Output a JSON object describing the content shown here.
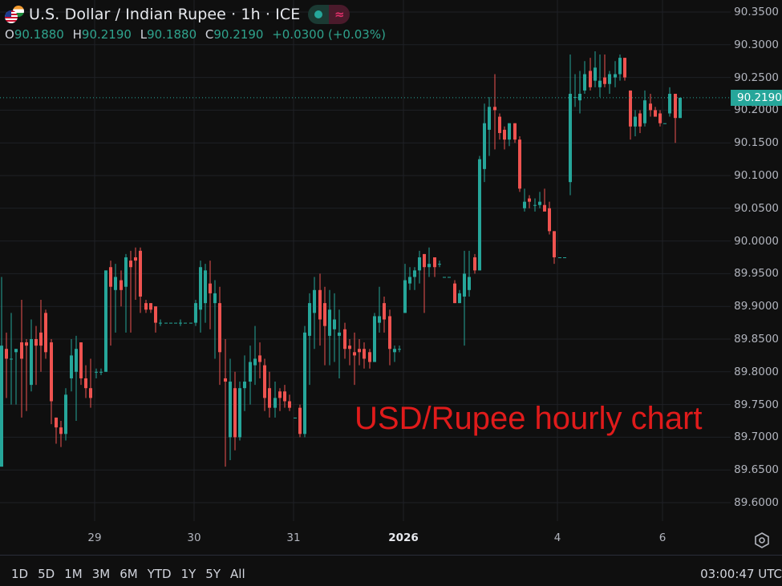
{
  "header": {
    "title": "U.S. Dollar / Indian Rupee · 1h · ICE",
    "symbol_icons": [
      "us-flag-icon",
      "india-flag-icon"
    ],
    "toggle": {
      "left_icon": "dot-icon",
      "right_icon": "approx-wave-icon",
      "right_glyph": "≈"
    },
    "ohlc": {
      "o_label": "O",
      "o_value": "90.1880",
      "h_label": "H",
      "h_value": "90.2190",
      "l_label": "L",
      "l_value": "90.1880",
      "c_label": "C",
      "c_value": "90.2190",
      "change": "+0.0300 (+0.03%)"
    }
  },
  "colors": {
    "background": "#0f0f0f",
    "grid": "#1f2126",
    "up": "#26a69a",
    "down": "#ef5350",
    "last_price_bg": "#26a69a",
    "annotation": "#e01b1b"
  },
  "price_axis": {
    "labels": [
      "90.3500",
      "90.3000",
      "90.2500",
      "90.2000",
      "90.1500",
      "90.1000",
      "90.0500",
      "90.0000",
      "89.9500",
      "89.9000",
      "89.8500",
      "89.8000",
      "89.7500",
      "89.7000",
      "89.6500",
      "89.6000"
    ],
    "last_price": "90.2190"
  },
  "time_axis": {
    "labels": [
      {
        "text": "29",
        "x": 118,
        "year": false
      },
      {
        "text": "30",
        "x": 242,
        "year": false
      },
      {
        "text": "31",
        "x": 366,
        "year": false
      },
      {
        "text": "2026",
        "x": 503,
        "year": true
      },
      {
        "text": "4",
        "x": 695,
        "year": false
      },
      {
        "text": "6",
        "x": 826,
        "year": false
      }
    ]
  },
  "annotation": {
    "text": "USD/Rupee hourly chart"
  },
  "bottom_bar": {
    "ranges": [
      "1D",
      "5D",
      "1M",
      "3M",
      "6M",
      "YTD",
      "1Y",
      "5Y",
      "All"
    ],
    "clock": "03:00:47 UTC"
  },
  "chart_data": {
    "type": "candlestick",
    "title": "U.S. Dollar / Indian Rupee · 1h · ICE",
    "xlabel": "",
    "ylabel": "",
    "x_tick_labels": [
      "29",
      "30",
      "31",
      "2026",
      "4",
      "6"
    ],
    "y_tick_labels": [
      "90.3500",
      "90.3000",
      "90.2500",
      "90.2000",
      "90.1500",
      "90.1000",
      "90.0500",
      "90.0000",
      "89.9500",
      "89.9000",
      "89.8500",
      "89.8000",
      "89.7500",
      "89.7000",
      "89.6500",
      "89.6000"
    ],
    "ylim": [
      89.58,
      90.37
    ],
    "grid": true,
    "last_price": 90.219,
    "annotation": "USD/Rupee hourly chart",
    "candles": [
      {
        "x": 0,
        "o": 89.655,
        "h": 89.945,
        "l": 89.655,
        "c": 89.84
      },
      {
        "x": 6,
        "o": 89.835,
        "h": 89.86,
        "l": 89.76,
        "c": 89.82
      },
      {
        "x": 12,
        "o": 89.82,
        "h": 89.89,
        "l": 89.75,
        "c": 89.82
      },
      {
        "x": 18,
        "o": 89.83,
        "h": 89.835,
        "l": 89.75,
        "c": 89.835
      },
      {
        "x": 25,
        "o": 89.845,
        "h": 89.91,
        "l": 89.73,
        "c": 89.82
      },
      {
        "x": 31,
        "o": 89.845,
        "h": 89.85,
        "l": 89.74,
        "c": 89.84
      },
      {
        "x": 37,
        "o": 89.78,
        "h": 89.88,
        "l": 89.77,
        "c": 89.85
      },
      {
        "x": 43,
        "o": 89.85,
        "h": 89.87,
        "l": 89.78,
        "c": 89.84
      },
      {
        "x": 49,
        "o": 89.86,
        "h": 89.91,
        "l": 89.8,
        "c": 89.84
      },
      {
        "x": 55,
        "o": 89.89,
        "h": 89.895,
        "l": 89.82,
        "c": 89.83
      },
      {
        "x": 62,
        "o": 89.845,
        "h": 89.85,
        "l": 89.72,
        "c": 89.755
      },
      {
        "x": 68,
        "o": 89.73,
        "h": 89.73,
        "l": 89.69,
        "c": 89.715
      },
      {
        "x": 74,
        "o": 89.715,
        "h": 89.725,
        "l": 89.685,
        "c": 89.705
      },
      {
        "x": 80,
        "o": 89.705,
        "h": 89.775,
        "l": 89.695,
        "c": 89.765
      },
      {
        "x": 87,
        "o": 89.79,
        "h": 89.85,
        "l": 89.77,
        "c": 89.825
      },
      {
        "x": 93,
        "o": 89.8,
        "h": 89.855,
        "l": 89.725,
        "c": 89.835
      },
      {
        "x": 99,
        "o": 89.845,
        "h": 89.845,
        "l": 89.78,
        "c": 89.79
      },
      {
        "x": 105,
        "o": 89.79,
        "h": 89.81,
        "l": 89.76,
        "c": 89.775
      },
      {
        "x": 111,
        "o": 89.775,
        "h": 89.82,
        "l": 89.745,
        "c": 89.76
      },
      {
        "x": 118,
        "o": 89.8,
        "h": 89.805,
        "l": 89.79,
        "c": 89.8
      },
      {
        "x": 124,
        "o": 89.8,
        "h": 89.805,
        "l": 89.795,
        "c": 89.8
      },
      {
        "x": 130,
        "o": 89.8,
        "h": 89.955,
        "l": 89.8,
        "c": 89.955
      },
      {
        "x": 136,
        "o": 89.96,
        "h": 89.97,
        "l": 89.84,
        "c": 89.93
      },
      {
        "x": 142,
        "o": 89.925,
        "h": 89.965,
        "l": 89.86,
        "c": 89.945
      },
      {
        "x": 149,
        "o": 89.94,
        "h": 89.955,
        "l": 89.9,
        "c": 89.925
      },
      {
        "x": 155,
        "o": 89.93,
        "h": 89.98,
        "l": 89.86,
        "c": 89.975
      },
      {
        "x": 161,
        "o": 89.97,
        "h": 89.985,
        "l": 89.86,
        "c": 89.96
      },
      {
        "x": 167,
        "o": 89.975,
        "h": 89.99,
        "l": 89.91,
        "c": 89.97
      },
      {
        "x": 173,
        "o": 89.985,
        "h": 89.99,
        "l": 89.89,
        "c": 89.915
      },
      {
        "x": 180,
        "o": 89.905,
        "h": 89.91,
        "l": 89.89,
        "c": 89.895
      },
      {
        "x": 186,
        "o": 89.905,
        "h": 89.905,
        "l": 89.89,
        "c": 89.895
      },
      {
        "x": 192,
        "o": 89.9,
        "h": 89.9,
        "l": 89.86,
        "c": 89.875
      },
      {
        "x": 198,
        "o": 89.875,
        "h": 89.88,
        "l": 89.87,
        "c": 89.875
      },
      {
        "x": 205,
        "o": 89.875,
        "h": 89.875,
        "l": 89.875,
        "c": 89.875
      },
      {
        "x": 211,
        "o": 89.875,
        "h": 89.875,
        "l": 89.875,
        "c": 89.875
      },
      {
        "x": 217,
        "o": 89.875,
        "h": 89.875,
        "l": 89.875,
        "c": 89.875
      },
      {
        "x": 223,
        "o": 89.875,
        "h": 89.88,
        "l": 89.87,
        "c": 89.875
      },
      {
        "x": 229,
        "o": 89.875,
        "h": 89.875,
        "l": 89.875,
        "c": 89.875
      },
      {
        "x": 236,
        "o": 89.875,
        "h": 89.875,
        "l": 89.875,
        "c": 89.875
      },
      {
        "x": 242,
        "o": 89.875,
        "h": 89.91,
        "l": 89.87,
        "c": 89.905
      },
      {
        "x": 248,
        "o": 89.895,
        "h": 89.97,
        "l": 89.86,
        "c": 89.96
      },
      {
        "x": 254,
        "o": 89.905,
        "h": 89.965,
        "l": 89.875,
        "c": 89.955
      },
      {
        "x": 260,
        "o": 89.935,
        "h": 89.97,
        "l": 89.865,
        "c": 89.92
      },
      {
        "x": 266,
        "o": 89.905,
        "h": 89.94,
        "l": 89.82,
        "c": 89.92
      },
      {
        "x": 272,
        "o": 89.905,
        "h": 89.93,
        "l": 89.78,
        "c": 89.83
      },
      {
        "x": 279,
        "o": 89.79,
        "h": 89.85,
        "l": 89.655,
        "c": 89.785
      },
      {
        "x": 285,
        "o": 89.7,
        "h": 89.82,
        "l": 89.665,
        "c": 89.785
      },
      {
        "x": 291,
        "o": 89.775,
        "h": 89.8,
        "l": 89.68,
        "c": 89.7
      },
      {
        "x": 297,
        "o": 89.7,
        "h": 89.785,
        "l": 89.695,
        "c": 89.775
      },
      {
        "x": 303,
        "o": 89.775,
        "h": 89.825,
        "l": 89.74,
        "c": 89.785
      },
      {
        "x": 310,
        "o": 89.785,
        "h": 89.84,
        "l": 89.75,
        "c": 89.815
      },
      {
        "x": 316,
        "o": 89.81,
        "h": 89.87,
        "l": 89.78,
        "c": 89.82
      },
      {
        "x": 322,
        "o": 89.825,
        "h": 89.845,
        "l": 89.79,
        "c": 89.815
      },
      {
        "x": 328,
        "o": 89.81,
        "h": 89.82,
        "l": 89.74,
        "c": 89.76
      },
      {
        "x": 334,
        "o": 89.775,
        "h": 89.8,
        "l": 89.73,
        "c": 89.745
      },
      {
        "x": 341,
        "o": 89.745,
        "h": 89.785,
        "l": 89.73,
        "c": 89.76
      },
      {
        "x": 347,
        "o": 89.77,
        "h": 89.775,
        "l": 89.74,
        "c": 89.76
      },
      {
        "x": 353,
        "o": 89.77,
        "h": 89.78,
        "l": 89.745,
        "c": 89.755
      },
      {
        "x": 359,
        "o": 89.755,
        "h": 89.765,
        "l": 89.74,
        "c": 89.745
      },
      {
        "x": 366,
        "o": 89.73,
        "h": 89.73,
        "l": 89.73,
        "c": 89.73
      },
      {
        "x": 372,
        "o": 89.745,
        "h": 89.75,
        "l": 89.7,
        "c": 89.705
      },
      {
        "x": 378,
        "o": 89.705,
        "h": 89.87,
        "l": 89.7,
        "c": 89.86
      },
      {
        "x": 384,
        "o": 89.855,
        "h": 89.92,
        "l": 89.78,
        "c": 89.905
      },
      {
        "x": 390,
        "o": 89.89,
        "h": 89.945,
        "l": 89.835,
        "c": 89.925
      },
      {
        "x": 397,
        "o": 89.925,
        "h": 89.95,
        "l": 89.84,
        "c": 89.88
      },
      {
        "x": 403,
        "o": 89.905,
        "h": 89.93,
        "l": 89.81,
        "c": 89.87
      },
      {
        "x": 409,
        "o": 89.855,
        "h": 89.925,
        "l": 89.81,
        "c": 89.895
      },
      {
        "x": 415,
        "o": 89.865,
        "h": 89.92,
        "l": 89.815,
        "c": 89.88
      },
      {
        "x": 421,
        "o": 89.855,
        "h": 89.895,
        "l": 89.79,
        "c": 89.86
      },
      {
        "x": 428,
        "o": 89.865,
        "h": 89.875,
        "l": 89.82,
        "c": 89.835
      },
      {
        "x": 434,
        "o": 89.84,
        "h": 89.85,
        "l": 89.81,
        "c": 89.835
      },
      {
        "x": 440,
        "o": 89.83,
        "h": 89.86,
        "l": 89.78,
        "c": 89.825
      },
      {
        "x": 446,
        "o": 89.835,
        "h": 89.85,
        "l": 89.81,
        "c": 89.83
      },
      {
        "x": 452,
        "o": 89.835,
        "h": 89.845,
        "l": 89.805,
        "c": 89.82
      },
      {
        "x": 459,
        "o": 89.83,
        "h": 89.835,
        "l": 89.805,
        "c": 89.815
      },
      {
        "x": 465,
        "o": 89.815,
        "h": 89.89,
        "l": 89.815,
        "c": 89.885
      },
      {
        "x": 471,
        "o": 89.875,
        "h": 89.93,
        "l": 89.86,
        "c": 89.885
      },
      {
        "x": 477,
        "o": 89.905,
        "h": 89.915,
        "l": 89.86,
        "c": 89.88
      },
      {
        "x": 484,
        "o": 89.885,
        "h": 89.895,
        "l": 89.81,
        "c": 89.835
      },
      {
        "x": 490,
        "o": 89.83,
        "h": 89.84,
        "l": 89.815,
        "c": 89.835
      },
      {
        "x": 496,
        "o": 89.835,
        "h": 89.84,
        "l": 89.83,
        "c": 89.835
      },
      {
        "x": 503,
        "o": 89.89,
        "h": 89.965,
        "l": 89.89,
        "c": 89.94
      },
      {
        "x": 509,
        "o": 89.935,
        "h": 89.96,
        "l": 89.925,
        "c": 89.945
      },
      {
        "x": 515,
        "o": 89.945,
        "h": 89.96,
        "l": 89.925,
        "c": 89.955
      },
      {
        "x": 521,
        "o": 89.955,
        "h": 89.985,
        "l": 89.935,
        "c": 89.975
      },
      {
        "x": 527,
        "o": 89.98,
        "h": 89.98,
        "l": 89.89,
        "c": 89.96
      },
      {
        "x": 533,
        "o": 89.96,
        "h": 89.99,
        "l": 89.945,
        "c": 89.965
      },
      {
        "x": 540,
        "o": 89.975,
        "h": 89.975,
        "l": 89.945,
        "c": 89.96
      },
      {
        "x": 546,
        "o": 89.965,
        "h": 89.97,
        "l": 89.96,
        "c": 89.965
      },
      {
        "x": 552,
        "o": 89.945,
        "h": 89.945,
        "l": 89.945,
        "c": 89.945
      },
      {
        "x": 558,
        "o": 89.945,
        "h": 89.945,
        "l": 89.945,
        "c": 89.945
      },
      {
        "x": 565,
        "o": 89.935,
        "h": 89.94,
        "l": 89.905,
        "c": 89.905
      },
      {
        "x": 571,
        "o": 89.905,
        "h": 89.925,
        "l": 89.905,
        "c": 89.92
      },
      {
        "x": 577,
        "o": 89.915,
        "h": 89.985,
        "l": 89.84,
        "c": 89.95
      },
      {
        "x": 583,
        "o": 89.925,
        "h": 89.985,
        "l": 89.915,
        "c": 89.945
      },
      {
        "x": 590,
        "o": 89.975,
        "h": 89.98,
        "l": 89.95,
        "c": 89.955
      },
      {
        "x": 596,
        "o": 89.955,
        "h": 90.13,
        "l": 89.955,
        "c": 90.125
      },
      {
        "x": 602,
        "o": 90.11,
        "h": 90.21,
        "l": 90.09,
        "c": 90.18
      },
      {
        "x": 608,
        "o": 90.17,
        "h": 90.22,
        "l": 90.13,
        "c": 90.205
      },
      {
        "x": 615,
        "o": 90.205,
        "h": 90.255,
        "l": 90.14,
        "c": 90.2
      },
      {
        "x": 621,
        "o": 90.19,
        "h": 90.195,
        "l": 90.155,
        "c": 90.165
      },
      {
        "x": 627,
        "o": 90.17,
        "h": 90.175,
        "l": 90.14,
        "c": 90.155
      },
      {
        "x": 633,
        "o": 90.155,
        "h": 90.18,
        "l": 90.145,
        "c": 90.18
      },
      {
        "x": 640,
        "o": 90.18,
        "h": 90.18,
        "l": 90.15,
        "c": 90.155
      },
      {
        "x": 646,
        "o": 90.155,
        "h": 90.16,
        "l": 90.075,
        "c": 90.08
      },
      {
        "x": 652,
        "o": 90.05,
        "h": 90.08,
        "l": 90.045,
        "c": 90.06
      },
      {
        "x": 658,
        "o": 90.065,
        "h": 90.07,
        "l": 90.05,
        "c": 90.06
      },
      {
        "x": 665,
        "o": 90.055,
        "h": 90.065,
        "l": 90.045,
        "c": 90.055
      },
      {
        "x": 671,
        "o": 90.055,
        "h": 90.075,
        "l": 90.05,
        "c": 90.06
      },
      {
        "x": 677,
        "o": 90.055,
        "h": 90.08,
        "l": 90.05,
        "c": 90.045
      },
      {
        "x": 683,
        "o": 90.05,
        "h": 90.06,
        "l": 90.01,
        "c": 90.015
      },
      {
        "x": 689,
        "o": 90.015,
        "h": 90.015,
        "l": 89.965,
        "c": 89.975
      },
      {
        "x": 696,
        "o": 89.975,
        "h": 89.975,
        "l": 89.975,
        "c": 89.975
      },
      {
        "x": 702,
        "o": 89.975,
        "h": 89.975,
        "l": 89.975,
        "c": 89.975
      },
      {
        "x": 709,
        "o": 90.09,
        "h": 90.285,
        "l": 90.07,
        "c": 90.225
      },
      {
        "x": 715,
        "o": 90.22,
        "h": 90.255,
        "l": 90.205,
        "c": 90.22
      },
      {
        "x": 721,
        "o": 90.215,
        "h": 90.26,
        "l": 90.195,
        "c": 90.225
      },
      {
        "x": 727,
        "o": 90.23,
        "h": 90.275,
        "l": 90.225,
        "c": 90.255
      },
      {
        "x": 734,
        "o": 90.26,
        "h": 90.28,
        "l": 90.23,
        "c": 90.235
      },
      {
        "x": 740,
        "o": 90.245,
        "h": 90.29,
        "l": 90.235,
        "c": 90.265
      },
      {
        "x": 746,
        "o": 90.235,
        "h": 90.285,
        "l": 90.22,
        "c": 90.245
      },
      {
        "x": 752,
        "o": 90.25,
        "h": 90.285,
        "l": 90.235,
        "c": 90.24
      },
      {
        "x": 758,
        "o": 90.24,
        "h": 90.26,
        "l": 90.225,
        "c": 90.255
      },
      {
        "x": 765,
        "o": 90.25,
        "h": 90.275,
        "l": 90.235,
        "c": 90.255
      },
      {
        "x": 771,
        "o": 90.255,
        "h": 90.285,
        "l": 90.245,
        "c": 90.28
      },
      {
        "x": 777,
        "o": 90.28,
        "h": 90.28,
        "l": 90.245,
        "c": 90.25
      },
      {
        "x": 784,
        "o": 90.23,
        "h": 90.23,
        "l": 90.155,
        "c": 90.175
      },
      {
        "x": 790,
        "o": 90.175,
        "h": 90.2,
        "l": 90.16,
        "c": 90.19
      },
      {
        "x": 796,
        "o": 90.195,
        "h": 90.2,
        "l": 90.165,
        "c": 90.175
      },
      {
        "x": 802,
        "o": 90.18,
        "h": 90.23,
        "l": 90.175,
        "c": 90.215
      },
      {
        "x": 809,
        "o": 90.21,
        "h": 90.225,
        "l": 90.19,
        "c": 90.2
      },
      {
        "x": 815,
        "o": 90.2,
        "h": 90.205,
        "l": 90.19,
        "c": 90.19
      },
      {
        "x": 821,
        "o": 90.195,
        "h": 90.2,
        "l": 90.175,
        "c": 90.18
      },
      {
        "x": 827,
        "o": 90.18,
        "h": 90.18,
        "l": 90.18,
        "c": 90.18
      },
      {
        "x": 833,
        "o": 90.195,
        "h": 90.235,
        "l": 90.19,
        "c": 90.225
      },
      {
        "x": 840,
        "o": 90.225,
        "h": 90.225,
        "l": 90.15,
        "c": 90.188
      },
      {
        "x": 846,
        "o": 90.188,
        "h": 90.219,
        "l": 90.188,
        "c": 90.219
      }
    ]
  }
}
